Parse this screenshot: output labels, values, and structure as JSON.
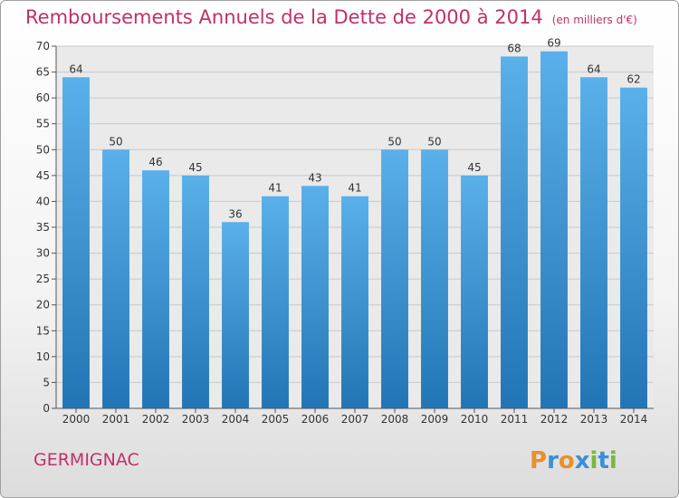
{
  "title": "Remboursements Annuels de la Dette de 2000 à 2014",
  "subtitle": "(en milliers d'€)",
  "commune": "GERMIGNAC",
  "logo_text": "Proxiti",
  "colors": {
    "title": "#c0306a",
    "bar_top": "#5ab0ea",
    "bar_bottom": "#2275b5",
    "grid": "#c8c8c8"
  },
  "chart_data": {
    "type": "bar",
    "categories": [
      "2000",
      "2001",
      "2002",
      "2003",
      "2004",
      "2005",
      "2006",
      "2007",
      "2008",
      "2009",
      "2010",
      "2011",
      "2012",
      "2013",
      "2014"
    ],
    "values": [
      64,
      50,
      46,
      45,
      36,
      41,
      43,
      41,
      50,
      50,
      45,
      68,
      69,
      64,
      62
    ],
    "ylim": [
      0,
      70
    ],
    "yticks": [
      0,
      5,
      10,
      15,
      20,
      25,
      30,
      35,
      40,
      45,
      50,
      55,
      60,
      65,
      70
    ],
    "grid": true,
    "data_labels": true
  }
}
